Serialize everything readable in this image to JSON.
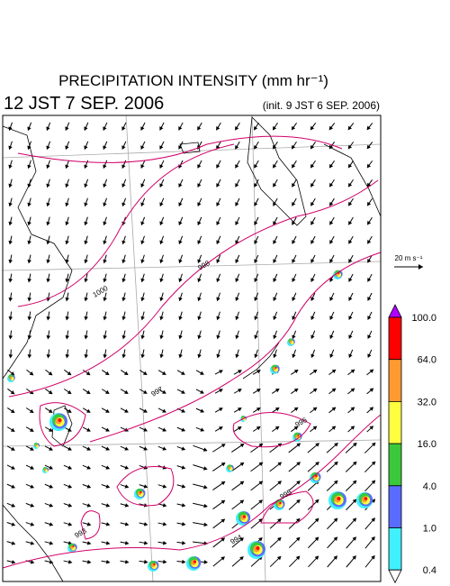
{
  "header": {
    "title": "PRECIPITATION INTENSITY (mm hr⁻¹)",
    "time": "12 JST 7 SEP. 2006",
    "init": "(init. 9 JST 6 SEP. 2006)"
  },
  "wind_scale": "20 m s⁻¹",
  "colorbar": {
    "labels": [
      "100.0",
      "64.0",
      "32.0",
      "16.0",
      "4.0",
      "1.0",
      "0.4"
    ]
  },
  "contour_labels": [
    "998",
    "1000",
    "997",
    "996",
    "995",
    "993",
    "994"
  ]
}
